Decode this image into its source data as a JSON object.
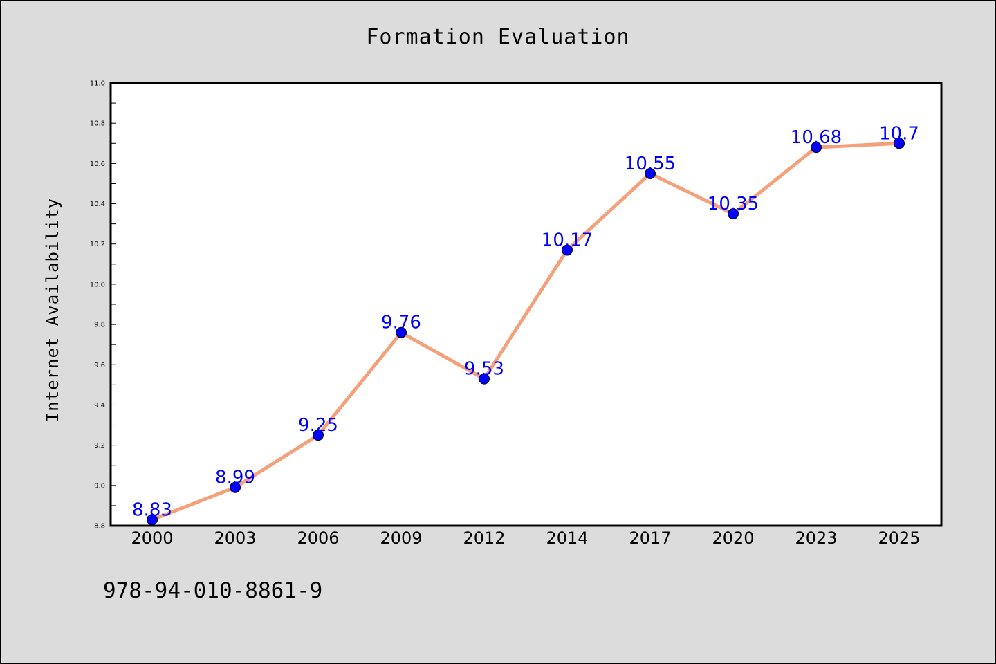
{
  "chart_data": {
    "type": "line",
    "title": "Formation Evaluation",
    "xlabel": "",
    "ylabel": "Internet Availability",
    "categories": [
      "2000",
      "2003",
      "2006",
      "2009",
      "2012",
      "2014",
      "2017",
      "2020",
      "2023",
      "2025"
    ],
    "series": [
      {
        "values": [
          8.83,
          8.99,
          9.25,
          9.76,
          9.53,
          10.17,
          10.55,
          10.35,
          10.68,
          10.7
        ],
        "data_labels": [
          "8.83",
          "8.99",
          "9.25",
          "9.76",
          "9.53",
          "10.17",
          "10.55",
          "10.35",
          "10.68",
          "10.7"
        ],
        "line_color": "#f4a07a",
        "marker_color": "#0000ff"
      }
    ],
    "ylim": [
      8.8,
      11.0
    ],
    "y_ticks": [
      "8.8",
      "9.0",
      "9.2",
      "9.4",
      "9.6",
      "9.8",
      "10.0",
      "10.2",
      "10.4",
      "10.6",
      "10.8",
      "11.0"
    ],
    "grid": false,
    "legend": "none"
  },
  "footer": {
    "code": "978-94-010-8861-9"
  },
  "colors": {
    "background": "#dcdcdc",
    "plot_background": "#ffffff",
    "line": "#f4a07a",
    "marker": "#0000ff",
    "data_label": "#0000ff"
  }
}
